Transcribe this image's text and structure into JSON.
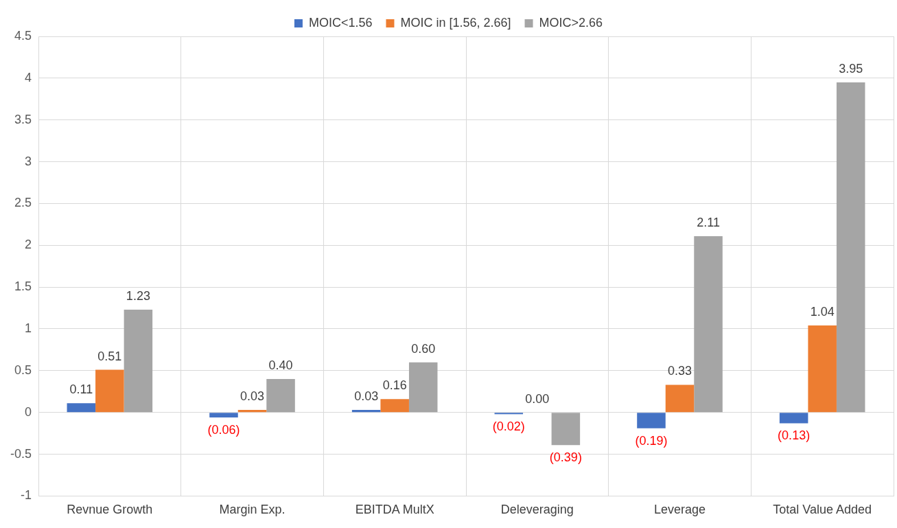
{
  "chart_data": {
    "type": "bar",
    "categories": [
      "Revnue Growth",
      "Margin Exp.",
      "EBITDA MultX",
      "Deleveraging",
      "Leverage",
      "Total Value Added"
    ],
    "series": [
      {
        "name": "MOIC<1.56",
        "color": "#4472c4",
        "values": [
          0.11,
          -0.06,
          0.03,
          -0.02,
          -0.19,
          -0.13
        ],
        "value_labels": [
          "0.11",
          "(0.06)",
          "0.03",
          "(0.02)",
          "(0.19)",
          "(0.13)"
        ]
      },
      {
        "name": "MOIC in [1.56, 2.66]",
        "color": "#ed7d31",
        "values": [
          0.51,
          0.03,
          0.16,
          0.0,
          0.33,
          1.04
        ],
        "value_labels": [
          "0.51",
          "0.03",
          "0.16",
          "0.00",
          "0.33",
          "1.04"
        ]
      },
      {
        "name": "MOIC>2.66",
        "color": "#a5a5a5",
        "values": [
          1.23,
          0.4,
          0.6,
          -0.39,
          2.11,
          3.95
        ],
        "value_labels": [
          "1.23",
          "0.40",
          "0.60",
          "(0.39)",
          "2.11",
          "3.95"
        ]
      }
    ],
    "ylim": [
      -1,
      4.5
    ],
    "yticks": [
      -1,
      -0.5,
      0,
      0.5,
      1,
      1.5,
      2,
      2.5,
      3,
      3.5,
      4,
      4.5
    ],
    "grid": true,
    "legend": "top"
  }
}
